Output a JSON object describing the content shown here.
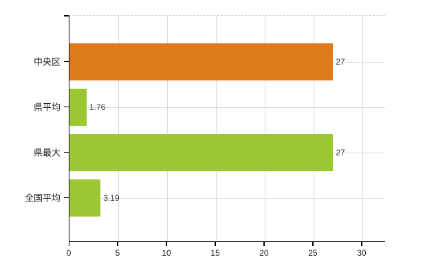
{
  "chart_data": {
    "type": "bar",
    "orientation": "horizontal",
    "title": "",
    "categories": [
      "中央区",
      "県平均",
      "県最大",
      "全国平均"
    ],
    "values": [
      27,
      1.76,
      27,
      3.19
    ],
    "value_labels": [
      "27",
      "1.76",
      "27",
      "3.19"
    ],
    "bar_colors": [
      "#e07a1f",
      "#9bc732",
      "#9bc732",
      "#9bc732"
    ],
    "x_ticks": [
      0,
      5,
      10,
      15,
      20,
      25,
      30
    ],
    "x_tick_labels": [
      "0",
      "5",
      "10",
      "15",
      "20",
      "25",
      "30"
    ],
    "xlim": [
      0,
      32.4
    ],
    "grid": true,
    "legend": false,
    "colors": {
      "background": "#ffffff",
      "axis": "#000000",
      "grid": "#d9d9d9",
      "top_border": "#cfcfcf",
      "category_label": "#1a1a1a",
      "tick_label": "#1a1a1a",
      "value_label": "#2e3a46",
      "orange_bar": "#e07a1f",
      "green_bar": "#9bc732"
    }
  }
}
